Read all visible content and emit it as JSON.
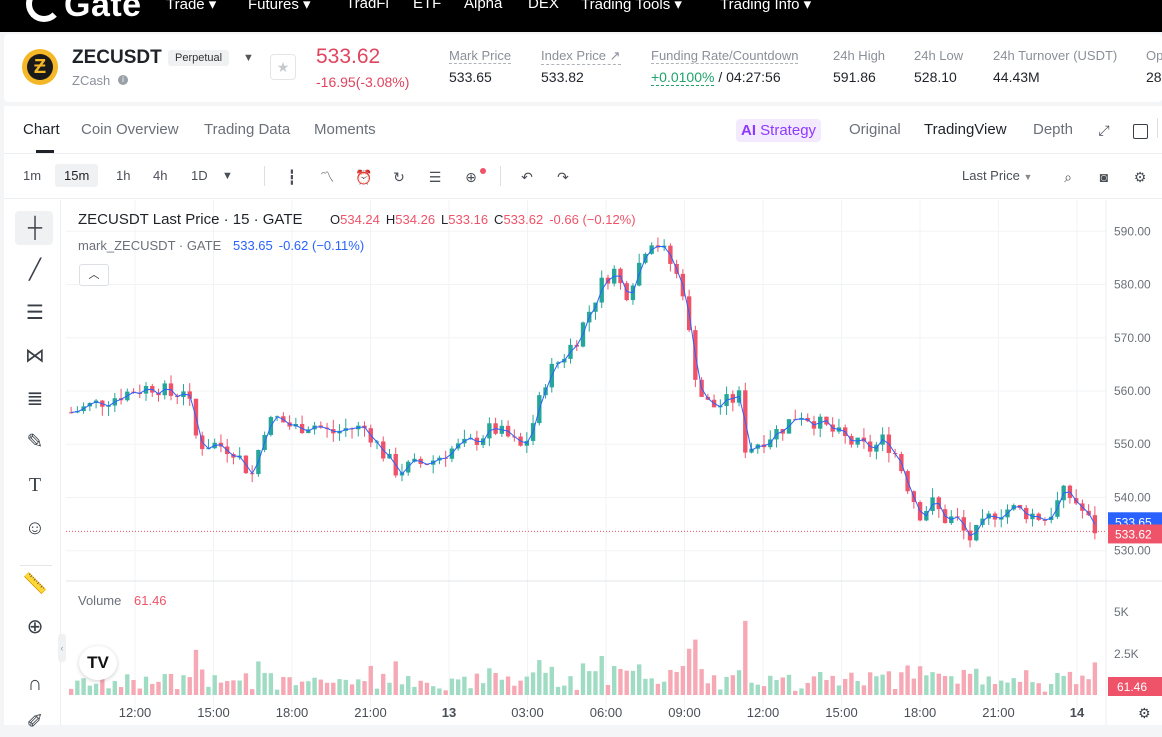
{
  "nav": {
    "logo": "Gate",
    "items": [
      "Trade ▾",
      "Futures ▾",
      "TradFi",
      "ETF",
      "Alpha",
      "DEX",
      "Trading Tools ▾",
      "Trading Info ▾"
    ]
  },
  "ticker": {
    "symbol": "ZECUSDT",
    "badge": "Perpetual",
    "coin_name": "ZCash",
    "price": "533.62",
    "change": "-16.95(-3.08%)",
    "mark_label": "Mark Price",
    "mark_value": "533.65",
    "index_label": "Index Price ↗",
    "index_value": "533.82",
    "funding_label": "Funding Rate/Countdown",
    "funding_rate": "+0.0100%",
    "funding_countdown": "/ 04:27:56",
    "high_label": "24h High",
    "high_value": "591.86",
    "low_label": "24h Low",
    "low_value": "528.10",
    "turnover_label": "24h Turnover (USDT)",
    "turnover_value": "44.43M",
    "cut_label": "Op",
    "cut_value": "28"
  },
  "tabs": [
    "Chart",
    "Coin Overview",
    "Trading Data",
    "Moments"
  ],
  "right_tabs": {
    "strategy": "Strategy",
    "original": "Original",
    "tradingview": "TradingView",
    "depth": "Depth"
  },
  "toolbar": {
    "timeframes": [
      "1m",
      "15m",
      "1h",
      "4h",
      "1D"
    ],
    "selected_timeframe": "15m",
    "price_type": "Last Price"
  },
  "legend": {
    "title": "ZECUSDT Last Price · 15 · GATE",
    "o_label": "O",
    "o": "534.24",
    "h_label": "H",
    "h": "534.26",
    "l_label": "L",
    "l": "533.16",
    "c_label": "C",
    "c": "533.62",
    "chg": "-0.66 (−0.12%)",
    "mark_title": "mark_ZECUSDT · GATE",
    "mark_val": "533.65",
    "mark_chg": "-0.62 (−0.11%)"
  },
  "volume_legend": {
    "label": "Volume",
    "value": "61.46"
  },
  "colors": {
    "up": "#26a69a",
    "down": "#ef5369",
    "mark": "#2962ff",
    "up_vol": "#9fdcc3",
    "down_vol": "#f6a8b4"
  },
  "chart_data": {
    "type": "candlestick",
    "y_ticks": [
      "590.00",
      "580.00",
      "570.00",
      "560.00",
      "550.00",
      "540.00",
      "530.00"
    ],
    "ylim": [
      526,
      594
    ],
    "x_ticks": [
      "12:00",
      "15:00",
      "18:00",
      "21:00",
      "13",
      "03:00",
      "06:00",
      "09:00",
      "12:00",
      "15:00",
      "18:00",
      "21:00",
      "14"
    ],
    "volume_ticks": [
      "5K",
      "2.5K"
    ],
    "mark_price_tag": "533.65",
    "last_price_tag": "533.62",
    "volume_tag": "61.46",
    "price_path": [
      [
        0,
        556
      ],
      [
        5,
        558
      ],
      [
        10,
        560
      ],
      [
        14,
        561
      ],
      [
        17,
        559
      ],
      [
        19,
        561
      ],
      [
        21,
        550
      ],
      [
        24,
        550
      ],
      [
        27,
        549
      ],
      [
        30,
        544
      ],
      [
        32,
        553
      ],
      [
        34,
        555
      ],
      [
        37,
        553
      ],
      [
        40,
        554
      ],
      [
        43,
        552
      ],
      [
        46,
        553
      ],
      [
        49,
        553
      ],
      [
        52,
        548
      ],
      [
        54,
        545
      ],
      [
        57,
        546
      ],
      [
        60,
        547
      ],
      [
        63,
        549
      ],
      [
        66,
        550
      ],
      [
        70,
        553
      ],
      [
        73,
        551
      ],
      [
        75,
        549
      ],
      [
        77,
        555
      ],
      [
        79,
        563
      ],
      [
        82,
        567
      ],
      [
        84,
        570
      ],
      [
        86,
        575
      ],
      [
        88,
        580
      ],
      [
        90,
        583
      ],
      [
        92,
        578
      ],
      [
        94,
        583
      ],
      [
        96,
        589
      ],
      [
        98,
        587
      ],
      [
        100,
        583
      ],
      [
        102,
        578
      ],
      [
        103,
        566
      ],
      [
        105,
        558
      ],
      [
        107,
        557
      ],
      [
        109,
        558
      ],
      [
        111,
        559
      ],
      [
        112,
        549
      ],
      [
        115,
        551
      ],
      [
        118,
        553
      ],
      [
        121,
        556
      ],
      [
        124,
        554
      ],
      [
        127,
        552
      ],
      [
        130,
        550
      ],
      [
        133,
        549
      ],
      [
        135,
        551
      ],
      [
        137,
        548
      ],
      [
        139,
        542
      ],
      [
        141,
        537
      ],
      [
        143,
        539
      ],
      [
        145,
        536
      ],
      [
        147,
        536
      ],
      [
        149,
        532
      ],
      [
        151,
        534
      ],
      [
        153,
        537
      ],
      [
        156,
        538
      ],
      [
        159,
        537
      ],
      [
        162,
        536
      ],
      [
        165,
        541
      ],
      [
        167,
        539
      ],
      [
        170,
        534
      ]
    ]
  }
}
